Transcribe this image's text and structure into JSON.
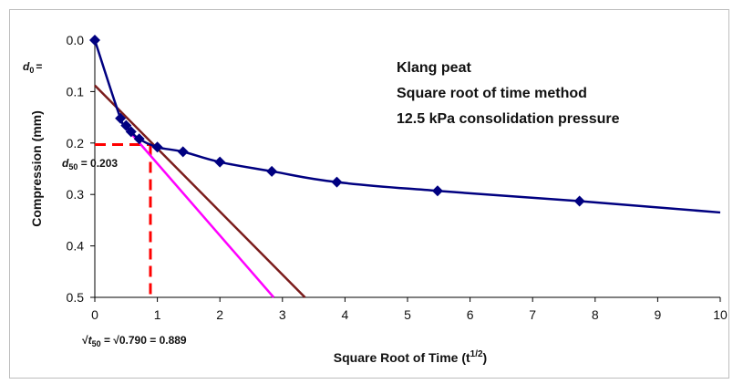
{
  "chart_data": {
    "type": "line",
    "title": "",
    "xlabel": "Square Root of Time (t",
    "xlabel_sup": "1/2",
    "xlabel_end": ")",
    "ylabel": "Compression (mm)",
    "xlim": [
      0,
      10
    ],
    "ylim": [
      0,
      0.5
    ],
    "y_inverted": true,
    "grid": false,
    "x_ticks": [
      0,
      1,
      2,
      3,
      4,
      5,
      6,
      7,
      8,
      9,
      10
    ],
    "x_tick_labels": [
      "0",
      "1",
      "2",
      "3",
      "4",
      "5",
      "6",
      "7",
      "8",
      "9",
      "10"
    ],
    "y_ticks": [
      0,
      0.1,
      0.2,
      0.3,
      0.4,
      0.5
    ],
    "y_tick_labels": [
      "0.0",
      "0.1",
      "0.2",
      "0.3",
      "0.4",
      "0.5"
    ],
    "series": [
      {
        "color": "#000080",
        "marker": "diamond",
        "x": [
          0,
          0.41,
          0.5,
          0.58,
          0.71,
          1.0,
          1.41,
          2.0,
          2.83,
          3.87,
          5.48,
          7.75
        ],
        "y": [
          0,
          0.152,
          0.166,
          0.178,
          0.192,
          0.208,
          0.217,
          0.237,
          0.255,
          0.276,
          0.293,
          0.313
        ],
        "curve_extends_to": [
          10.0,
          0.335
        ]
      },
      {
        "color": "#7B1C1C",
        "x": [
          0,
          3.36
        ],
        "y": [
          0.088,
          0.5
        ]
      },
      {
        "color": "#FF00FF",
        "x": [
          0.5,
          2.86
        ],
        "y": [
          0.17,
          0.5
        ]
      }
    ],
    "markers": {
      "t50_x": 0.889,
      "d50_y": 0.203,
      "d0_y": 0.088,
      "dash_color": "#FF0000"
    },
    "annotations": {
      "lines": [
        "Klang peat",
        "Square root of time method",
        "12.5 kPa consolidation pressure"
      ],
      "d0_symbol": "d",
      "d0_sub": "0",
      "d0_suffix": "=",
      "d50_symbol": "d",
      "d50_sub": "50",
      "d50_suffix": " = 0.203",
      "t50_prefix": "√",
      "t50_symbol": "t",
      "t50_sub": "50",
      "t50_suffix": " = √0.790 = 0.889"
    }
  }
}
